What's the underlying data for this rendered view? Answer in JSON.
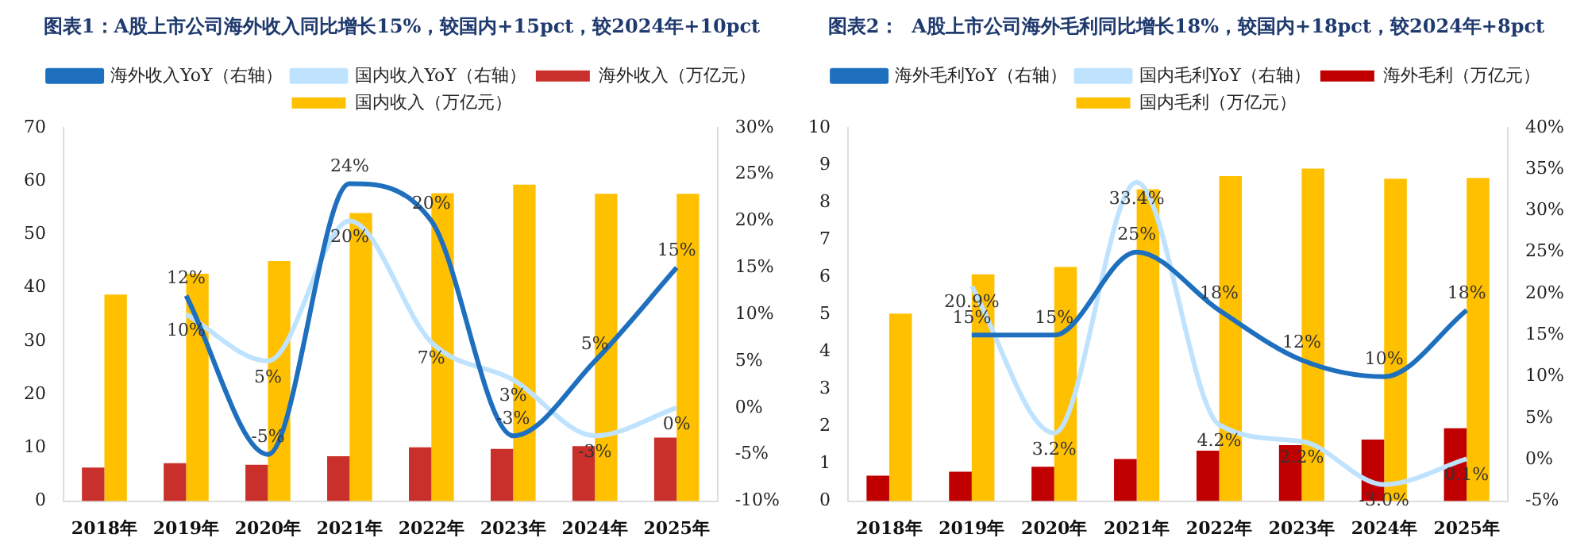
{
  "chart_data": [
    {
      "type": "bar",
      "title": "图表1：A股上市公司海外收入同比增长15%，较国内+15pct，较2024年+10pct",
      "categories": [
        "2018年",
        "2019年",
        "2020年",
        "2021年",
        "2022年",
        "2023年",
        "2024年",
        "2025年"
      ],
      "series": [
        {
          "name": "海外收入（万亿元）",
          "color": "#c9302c",
          "values": [
            6.3,
            7.1,
            6.8,
            8.4,
            10.1,
            9.8,
            10.3,
            11.9
          ]
        },
        {
          "name": "国内收入（万亿元）",
          "color": "#ffc000",
          "values": [
            38.7,
            42.6,
            45.0,
            54.0,
            57.7,
            59.3,
            57.6,
            57.6
          ]
        },
        {
          "name": "海外收入YoY（右轴）",
          "type": "line",
          "axis": "y2",
          "color": "#1f6fbf",
          "values": [
            null,
            12,
            -5,
            24,
            20,
            -3,
            5,
            15
          ],
          "value_labels": [
            null,
            "12%",
            "-5%",
            "24%",
            "20%",
            "-3%",
            "5%",
            "15%"
          ]
        },
        {
          "name": "国内收入YoY（右轴）",
          "type": "line",
          "axis": "y2",
          "color": "#bfe3ff",
          "values": [
            null,
            10,
            5,
            20,
            7,
            3,
            -3,
            0
          ],
          "value_labels": [
            null,
            "10%",
            "5%",
            "20%",
            "7%",
            "3%",
            "-3%",
            "0%"
          ]
        }
      ],
      "ylim": [
        0,
        70
      ],
      "yticks": [
        0,
        10,
        20,
        30,
        40,
        50,
        60,
        70
      ],
      "y2lim": [
        -10,
        30
      ],
      "y2ticks": [
        {
          "value": -10,
          "label": "-10%"
        },
        {
          "value": -5,
          "label": "-5%"
        },
        {
          "value": 0,
          "label": "0%"
        },
        {
          "value": 5,
          "label": "5%"
        },
        {
          "value": 10,
          "label": "10%"
        },
        {
          "value": 15,
          "label": "15%"
        },
        {
          "value": 20,
          "label": "20%"
        },
        {
          "value": 25,
          "label": "25%"
        },
        {
          "value": 30,
          "label": "30%"
        }
      ],
      "legend": "top",
      "grid": false,
      "marker": "none"
    },
    {
      "type": "bar",
      "title": "图表2：  A股上市公司海外毛利同比增长18%，较国内+18pct，较2024年+8pct",
      "categories": [
        "2018年",
        "2019年",
        "2020年",
        "2021年",
        "2022年",
        "2023年",
        "2024年",
        "2025年"
      ],
      "series": [
        {
          "name": "海外毛利（万亿元）",
          "color": "#c00000",
          "values": [
            0.68,
            0.79,
            0.92,
            1.13,
            1.35,
            1.5,
            1.65,
            1.95
          ]
        },
        {
          "name": "国内毛利（万亿元）",
          "color": "#ffc000",
          "values": [
            5.02,
            6.07,
            6.27,
            8.35,
            8.7,
            8.9,
            8.63,
            8.65
          ]
        },
        {
          "name": "海外毛利YoY（右轴）",
          "type": "line",
          "axis": "y2",
          "color": "#1f6fbf",
          "values": [
            null,
            15,
            15,
            25,
            18,
            12,
            10,
            18
          ],
          "value_labels": [
            null,
            "15%",
            "15%",
            "25%",
            "18%",
            "12%",
            "10%",
            "18%"
          ]
        },
        {
          "name": "国内毛利YoY（右轴）",
          "type": "line",
          "axis": "y2",
          "color": "#bfe3ff",
          "values": [
            null,
            20.9,
            3.2,
            33.4,
            4.2,
            2.2,
            -3.0,
            0.1
          ],
          "value_labels": [
            null,
            "20.9%",
            "3.2%",
            "33.4%",
            "4.2%",
            "2.2%",
            "-3.0%",
            "0.1%"
          ]
        }
      ],
      "ylim": [
        0,
        10
      ],
      "yticks": [
        0,
        1,
        2,
        3,
        4,
        5,
        6,
        7,
        8,
        9,
        10
      ],
      "y2lim": [
        -5,
        40
      ],
      "y2ticks": [
        {
          "value": -5,
          "label": "-5%"
        },
        {
          "value": 0,
          "label": "0%"
        },
        {
          "value": 5,
          "label": "5%"
        },
        {
          "value": 10,
          "label": "10%"
        },
        {
          "value": 15,
          "label": "15%"
        },
        {
          "value": 20,
          "label": "20%"
        },
        {
          "value": 25,
          "label": "25%"
        },
        {
          "value": 30,
          "label": "30%"
        },
        {
          "value": 35,
          "label": "35%"
        },
        {
          "value": 40,
          "label": "40%"
        }
      ],
      "legend": "top",
      "grid": false,
      "marker": "none"
    }
  ]
}
